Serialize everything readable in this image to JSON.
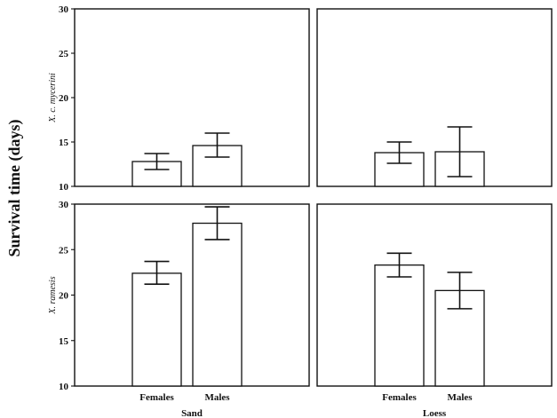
{
  "chart_data": {
    "type": "bar",
    "y_axis_title": "Survival time (days)",
    "ylim": [
      10,
      30
    ],
    "yticks": [
      10,
      15,
      20,
      25,
      30
    ],
    "categories": [
      "Females",
      "Males"
    ],
    "groups": [
      "Sand",
      "Loess"
    ],
    "rows": [
      "X. c. mycerini",
      "X. ramesis"
    ],
    "grid": false,
    "panels": [
      {
        "row": "X. c. mycerini",
        "group": "Sand",
        "values": [
          12.8,
          14.6
        ],
        "error_low": [
          11.9,
          13.3
        ],
        "error_high": [
          13.7,
          16.0
        ]
      },
      {
        "row": "X. c. mycerini",
        "group": "Loess",
        "values": [
          13.8,
          13.9
        ],
        "error_low": [
          12.6,
          11.1
        ],
        "error_high": [
          15.0,
          16.7
        ]
      },
      {
        "row": "X. ramesis",
        "group": "Sand",
        "values": [
          22.4,
          27.9
        ],
        "error_low": [
          21.2,
          26.1
        ],
        "error_high": [
          23.7,
          29.7
        ]
      },
      {
        "row": "X. ramesis",
        "group": "Loess",
        "values": [
          23.3,
          20.5
        ],
        "error_low": [
          22.0,
          18.5
        ],
        "error_high": [
          24.6,
          22.5
        ]
      }
    ]
  }
}
